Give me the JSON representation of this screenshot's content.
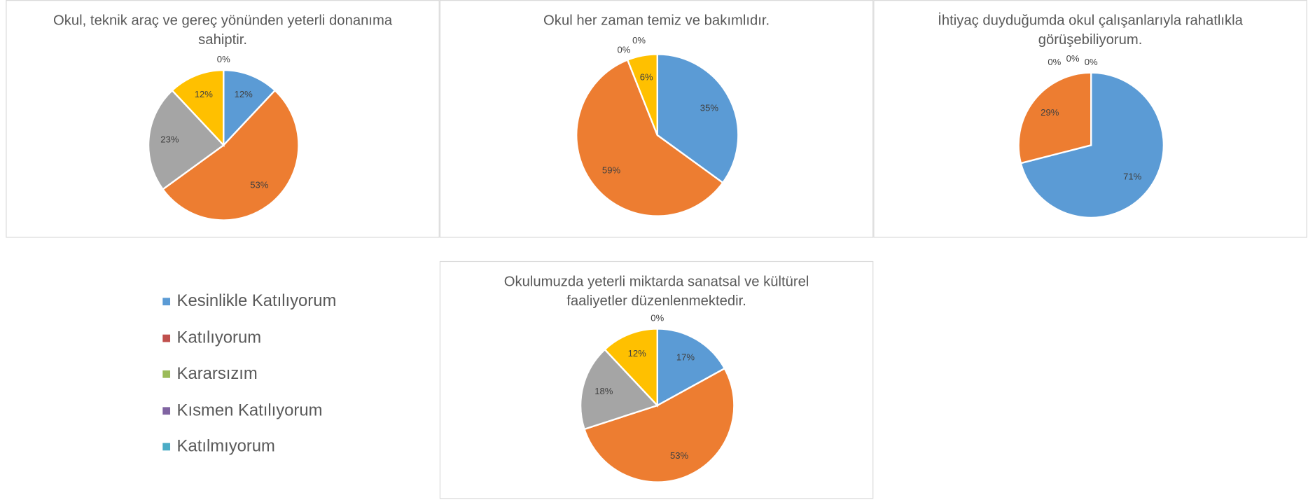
{
  "chart_data": [
    {
      "type": "pie",
      "title": "Okul, teknik araç ve gereç yönünden yeterli donanıma sahiptir.",
      "values": [
        12,
        53,
        23,
        12,
        0
      ],
      "value_labels": [
        "12%",
        "53%",
        "23%",
        "12%",
        "0%"
      ],
      "colors": [
        "#5b9bd5",
        "#ed7d31",
        "#a5a5a5",
        "#ffc000",
        "#4472c4"
      ]
    },
    {
      "type": "pie",
      "title": "Okul her zaman temiz ve bakımlıdır.",
      "values": [
        35,
        59,
        0,
        6,
        0
      ],
      "value_labels": [
        "35%",
        "59%",
        "0%",
        "6%",
        "0%"
      ],
      "colors": [
        "#5b9bd5",
        "#ed7d31",
        "#a5a5a5",
        "#ffc000",
        "#4472c4"
      ]
    },
    {
      "type": "pie",
      "title": "İhtiyaç duyduğumda okul çalışanlarıyla rahatlıkla görüşebiliyorum.",
      "values": [
        71,
        29,
        0,
        0,
        0
      ],
      "value_labels": [
        "71%",
        "29%",
        "0%",
        "0%",
        "0%"
      ],
      "colors": [
        "#5b9bd5",
        "#ed7d31",
        "#a5a5a5",
        "#ffc000",
        "#4472c4"
      ]
    },
    {
      "type": "pie",
      "title": "Okulumuzda yeterli miktarda sanatsal ve kültürel faaliyetler düzenlenmektedir.",
      "values": [
        17,
        53,
        18,
        12,
        0
      ],
      "value_labels": [
        "17%",
        "53%",
        "18%",
        "12%",
        "0%"
      ],
      "colors": [
        "#5b9bd5",
        "#ed7d31",
        "#a5a5a5",
        "#ffc000",
        "#4472c4"
      ]
    }
  ],
  "legend": {
    "items": [
      {
        "name": "Kesinlikle Katılıyorum",
        "color": "#5b9bd5"
      },
      {
        "name": "Katılıyorum",
        "color": "#c0504d"
      },
      {
        "name": "Kararsızım",
        "color": "#9bbb59"
      },
      {
        "name": "Kısmen Katılıyorum",
        "color": "#8064a2"
      },
      {
        "name": "Katılmıyorum",
        "color": "#4bacc6"
      }
    ]
  }
}
